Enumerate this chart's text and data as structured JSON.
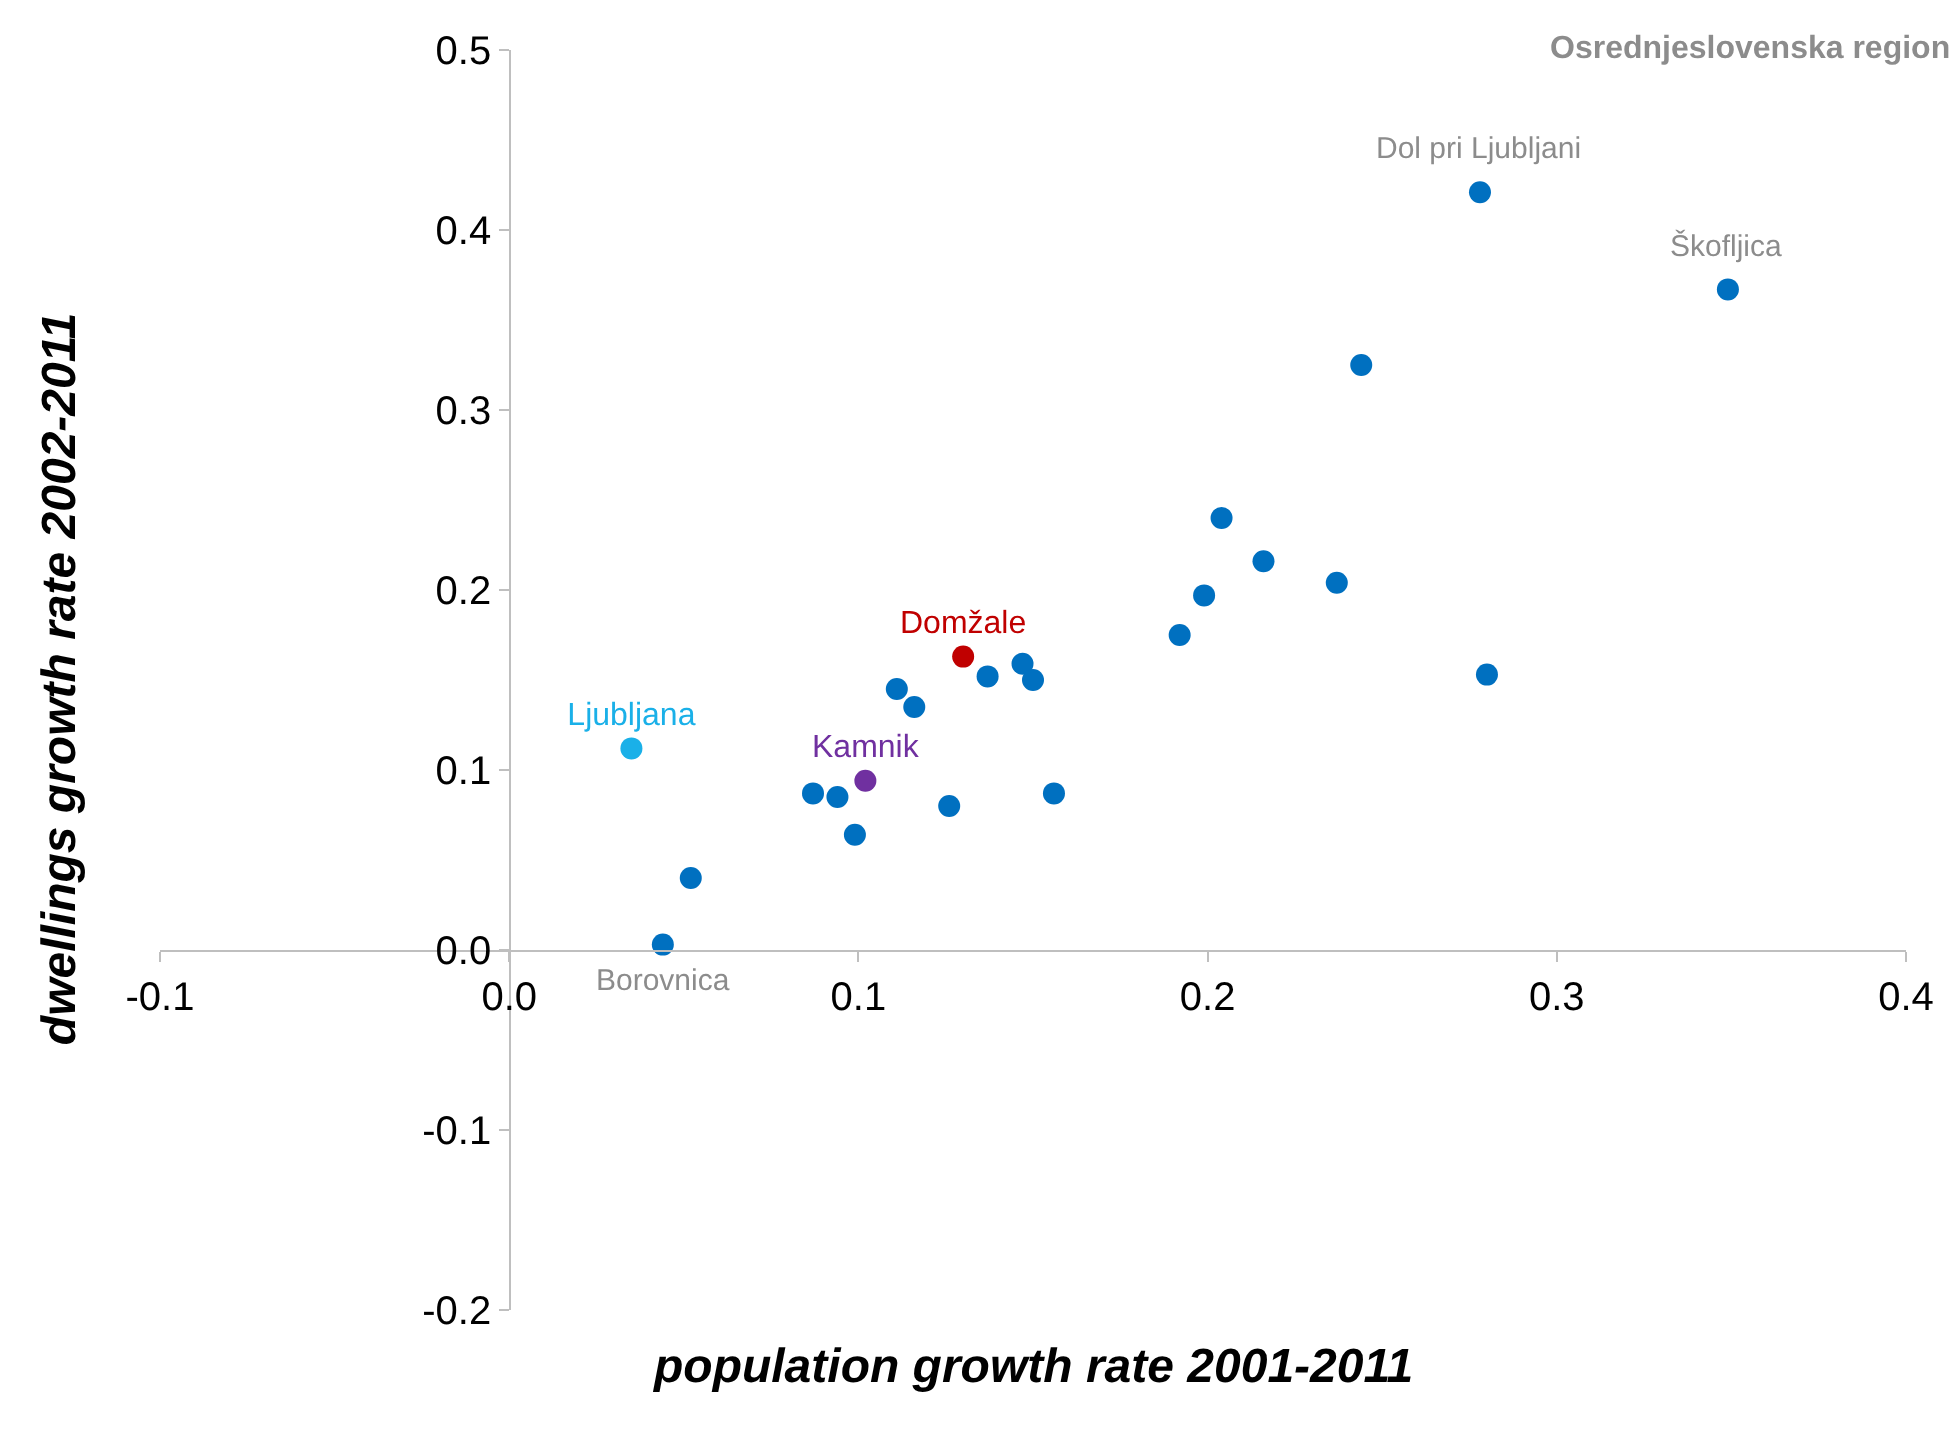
{
  "chart_data": {
    "type": "scatter",
    "title": "Osrednjeslovenska region",
    "xlabel": "population growth rate 2001-2011",
    "ylabel": "dwellings growth rate 2002-2011",
    "xlim": [
      -0.1,
      0.4
    ],
    "xticks": [
      -0.1,
      {
        "value": 0,
        "label": "0.0"
      },
      0.1,
      0.2,
      0.3,
      0.4
    ],
    "ylim": [
      -0.2,
      0.5
    ],
    "yticks": [
      -0.2,
      -0.1,
      {
        "value": 0,
        "label": "0.0"
      },
      0.1,
      0.2,
      0.3,
      0.4,
      0.5
    ],
    "legend": false,
    "marker": "circle",
    "series": [
      {
        "color": "#0070c0",
        "x": [
          0.044,
          0.052,
          0.087,
          0.094,
          0.099,
          0.111,
          0.116,
          0.126,
          0.137,
          0.147,
          0.15,
          0.156,
          0.192,
          0.199,
          0.204,
          0.216,
          0.237,
          0.244,
          0.278,
          0.28,
          0.349
        ],
        "values": [
          0.003,
          0.04,
          0.087,
          0.085,
          0.064,
          0.145,
          0.135,
          0.08,
          0.152,
          0.159,
          0.15,
          0.087,
          0.175,
          0.197,
          0.24,
          0.216,
          0.204,
          0.325,
          0.421,
          0.153,
          0.367
        ]
      },
      {
        "name": "Ljubljana",
        "color": "#1ab0e8",
        "x": [
          0.035
        ],
        "values": [
          0.112
        ]
      },
      {
        "name": "Kamnik",
        "color": "#7030a0",
        "x": [
          0.102
        ],
        "values": [
          0.094
        ]
      },
      {
        "name": "Domžale",
        "color": "#c00000",
        "x": [
          0.13
        ],
        "values": [
          0.163
        ]
      }
    ],
    "annotations": [
      {
        "text": "Borovnica",
        "x": 0.044,
        "y": 0.003
      },
      {
        "text": "Dol pri Ljubljani",
        "x": 0.278,
        "y": 0.421
      },
      {
        "text": "Škofljica",
        "x": 0.349,
        "y": 0.367
      }
    ]
  }
}
